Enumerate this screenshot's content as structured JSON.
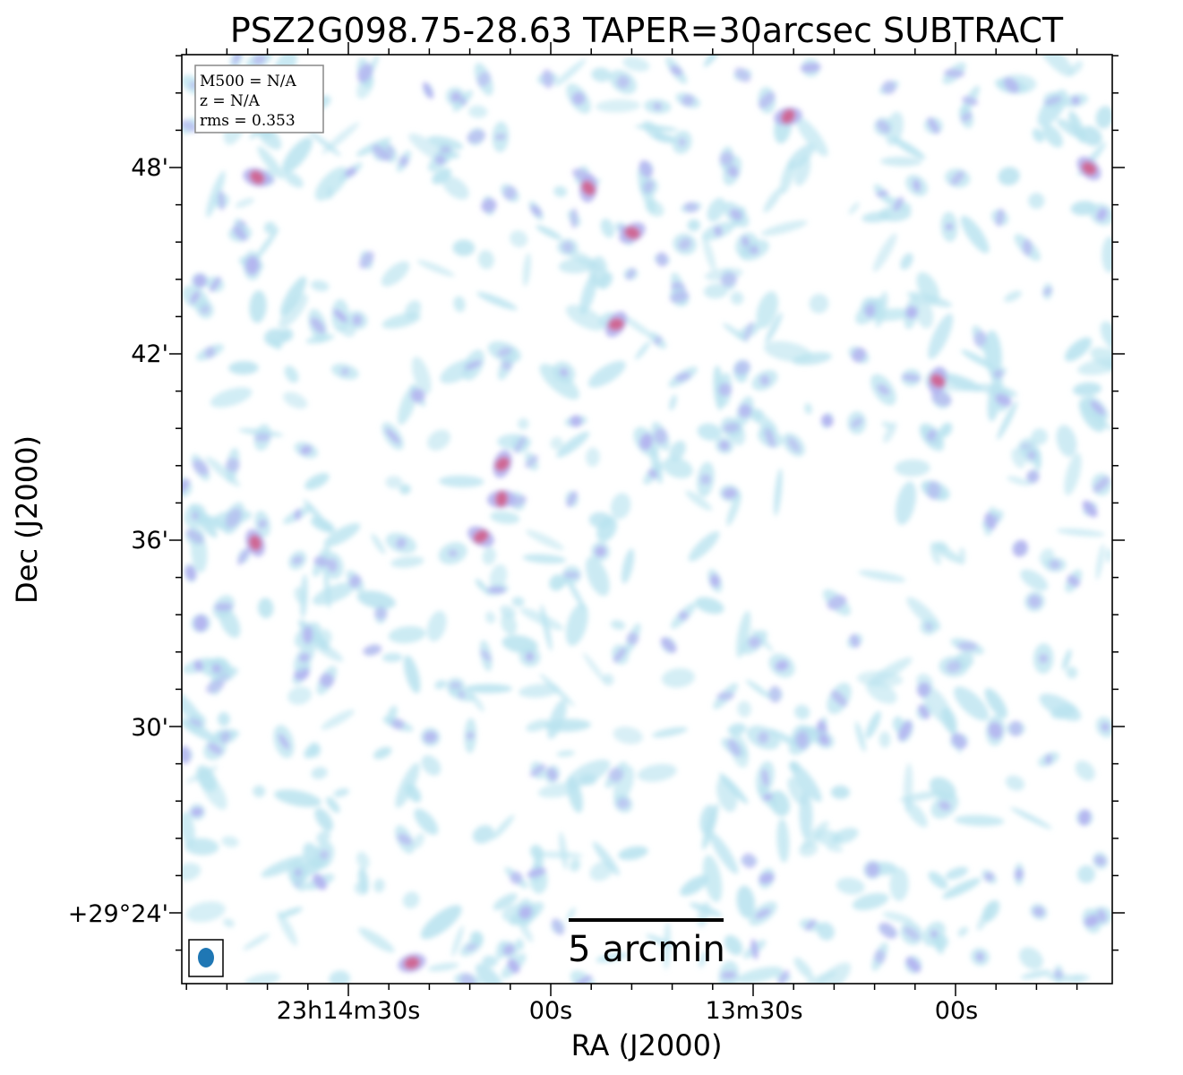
{
  "chart_data": {
    "type": "heatmap",
    "title": "PSZ2G098.75-28.63 TAPER=30arcsec SUBTRACT",
    "xlabel": "RA (J2000)",
    "ylabel": "Dec (J2000)",
    "x_ticks": [
      "23h14m30s",
      "00s",
      "13m30s",
      "00s"
    ],
    "y_ticks": [
      "+29°24'",
      "30'",
      "36'",
      "42'",
      "48'"
    ],
    "info_box": {
      "lines": [
        "M500 = N/A",
        "z = N/A",
        "rms = 0.353"
      ]
    },
    "scalebar": {
      "label": "5 arcmin"
    },
    "beam_color": "#1f77b4",
    "colors": {
      "low": "#b9e3ef",
      "mid": "#b3b3f0",
      "high": "#d45a86"
    }
  }
}
